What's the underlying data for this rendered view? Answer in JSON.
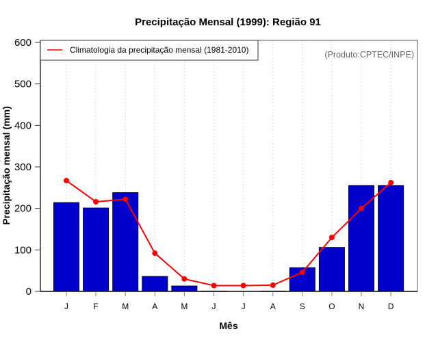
{
  "chart_data": {
    "type": "bar",
    "title": "Precipitação Mensal (1999): Região 91",
    "xlabel": "Mês",
    "ylabel": "Precipitação mensal (mm)",
    "categories": [
      "J",
      "F",
      "M",
      "A",
      "M",
      "J",
      "J",
      "A",
      "S",
      "O",
      "N",
      "D"
    ],
    "ylim": [
      0,
      600
    ],
    "yticks": [
      0,
      100,
      200,
      300,
      400,
      500,
      600
    ],
    "grid": "vertical-dotted",
    "series": [
      {
        "name": "Precipitação mensal (1999)",
        "type": "bar",
        "color": "#0000CD",
        "values": [
          214,
          201,
          238,
          36,
          13,
          1,
          0,
          1,
          57,
          106,
          255,
          255
        ]
      },
      {
        "name": "Climatologia da precipitação mensal (1981-2010)",
        "type": "line",
        "color": "#FF0000",
        "values": [
          267,
          216,
          222,
          92,
          30,
          14,
          14,
          15,
          46,
          130,
          200,
          262
        ]
      }
    ],
    "legend": {
      "position": "top-left",
      "entries": [
        "Climatologia da precipitação mensal (1981-2010)"
      ]
    },
    "annotation": "(Produto:CPTEC/INPE)"
  }
}
